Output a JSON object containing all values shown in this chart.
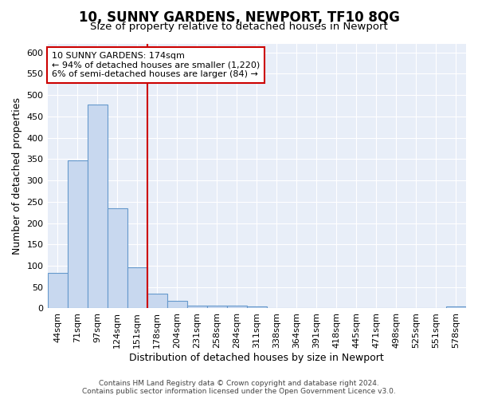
{
  "title": "10, SUNNY GARDENS, NEWPORT, TF10 8QG",
  "subtitle": "Size of property relative to detached houses in Newport",
  "xlabel": "Distribution of detached houses by size in Newport",
  "ylabel": "Number of detached properties",
  "bins": [
    "44sqm",
    "71sqm",
    "97sqm",
    "124sqm",
    "151sqm",
    "178sqm",
    "204sqm",
    "231sqm",
    "258sqm",
    "284sqm",
    "311sqm",
    "338sqm",
    "364sqm",
    "391sqm",
    "418sqm",
    "445sqm",
    "471sqm",
    "498sqm",
    "525sqm",
    "551sqm",
    "578sqm"
  ],
  "values": [
    83,
    347,
    477,
    234,
    97,
    35,
    18,
    7,
    7,
    7,
    4,
    0,
    0,
    0,
    0,
    0,
    0,
    0,
    0,
    0,
    5
  ],
  "bar_color": "#c8d8ef",
  "bar_edge_color": "#6699cc",
  "vline_x": 4.5,
  "vline_color": "#cc0000",
  "annotation_text": "10 SUNNY GARDENS: 174sqm\n← 94% of detached houses are smaller (1,220)\n6% of semi-detached houses are larger (84) →",
  "annotation_box_facecolor": "#ffffff",
  "annotation_box_edgecolor": "#cc0000",
  "ylim": [
    0,
    620
  ],
  "yticks": [
    0,
    50,
    100,
    150,
    200,
    250,
    300,
    350,
    400,
    450,
    500,
    550,
    600
  ],
  "footer_line1": "Contains HM Land Registry data © Crown copyright and database right 2024.",
  "footer_line2": "Contains public sector information licensed under the Open Government Licence v3.0.",
  "background_color": "#e8eef8",
  "grid_color": "#ffffff",
  "title_fontsize": 12,
  "subtitle_fontsize": 9.5,
  "axis_label_fontsize": 9,
  "tick_fontsize": 8,
  "annotation_fontsize": 8,
  "footer_fontsize": 6.5
}
